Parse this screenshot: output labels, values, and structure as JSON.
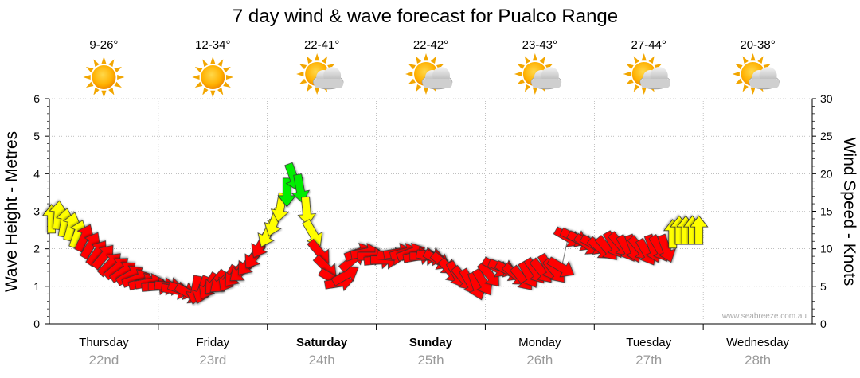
{
  "chart_data": {
    "type": "line",
    "title": "7 day wind & wave forecast for Pualco Range",
    "ylabel_left": "Wave Height - Metres",
    "ylabel_right": "Wind Speed - Knots",
    "y_left_ticks": [
      "0",
      "1",
      "2",
      "3",
      "4",
      "5",
      "6"
    ],
    "y_right_ticks": [
      "0",
      "5",
      "10",
      "15",
      "20",
      "25",
      "30"
    ],
    "ylim_left": [
      0,
      6
    ],
    "ylim_right": [
      0,
      30
    ],
    "grid": true,
    "days": [
      {
        "name": "Thursday",
        "date": "22nd",
        "temp": "9-26°",
        "icon": "sun-icon",
        "bold": false
      },
      {
        "name": "Friday",
        "date": "23rd",
        "temp": "12-34°",
        "icon": "sun-icon",
        "bold": false
      },
      {
        "name": "Saturday",
        "date": "24th",
        "temp": "22-41°",
        "icon": "partly-cloudy-icon",
        "bold": true
      },
      {
        "name": "Sunday",
        "date": "25th",
        "temp": "22-42°",
        "icon": "partly-cloudy-icon",
        "bold": true
      },
      {
        "name": "Monday",
        "date": "26th",
        "temp": "23-43°",
        "icon": "partly-cloudy-icon",
        "bold": false
      },
      {
        "name": "Tuesday",
        "date": "27th",
        "temp": "27-44°",
        "icon": "partly-cloudy-icon",
        "bold": false
      },
      {
        "name": "Wednesday",
        "date": "28th",
        "temp": "20-38°",
        "icon": "partly-cloudy-icon",
        "bold": false
      }
    ],
    "wind_series": {
      "name": "Wind Speed",
      "unit": "knots",
      "points": [
        {
          "t": 0.02,
          "v": 14.0,
          "dir": 180
        },
        {
          "t": 0.08,
          "v": 14.5,
          "dir": 185
        },
        {
          "t": 0.14,
          "v": 13.5,
          "dir": 190
        },
        {
          "t": 0.2,
          "v": 13.0,
          "dir": 195
        },
        {
          "t": 0.26,
          "v": 12.0,
          "dir": 200
        },
        {
          "t": 0.32,
          "v": 11.5,
          "dir": 205
        },
        {
          "t": 0.38,
          "v": 10.5,
          "dir": 210
        },
        {
          "t": 0.44,
          "v": 9.5,
          "dir": 215
        },
        {
          "t": 0.5,
          "v": 9.0,
          "dir": 220
        },
        {
          "t": 0.56,
          "v": 8.0,
          "dir": 225
        },
        {
          "t": 0.62,
          "v": 7.5,
          "dir": 230
        },
        {
          "t": 0.68,
          "v": 7.0,
          "dir": 235
        },
        {
          "t": 0.74,
          "v": 6.5,
          "dir": 240
        },
        {
          "t": 0.8,
          "v": 6.0,
          "dir": 250
        },
        {
          "t": 0.86,
          "v": 5.5,
          "dir": 255
        },
        {
          "t": 0.92,
          "v": 5.5,
          "dir": 260
        },
        {
          "t": 0.98,
          "v": 5.0,
          "dir": 265
        },
        {
          "t": 1.04,
          "v": 5.0,
          "dir": 270
        },
        {
          "t": 1.1,
          "v": 5.0,
          "dir": 275
        },
        {
          "t": 1.16,
          "v": 4.5,
          "dir": 280
        },
        {
          "t": 1.22,
          "v": 4.5,
          "dir": 290
        },
        {
          "t": 1.28,
          "v": 4.0,
          "dir": 300
        },
        {
          "t": 1.34,
          "v": 4.5,
          "dir": 10
        },
        {
          "t": 1.4,
          "v": 4.5,
          "dir": 20
        },
        {
          "t": 1.46,
          "v": 5.0,
          "dir": 30
        },
        {
          "t": 1.52,
          "v": 5.5,
          "dir": 40
        },
        {
          "t": 1.58,
          "v": 5.5,
          "dir": 50
        },
        {
          "t": 1.64,
          "v": 6.0,
          "dir": 30
        },
        {
          "t": 1.7,
          "v": 6.5,
          "dir": 40
        },
        {
          "t": 1.76,
          "v": 7.0,
          "dir": 50
        },
        {
          "t": 1.82,
          "v": 8.0,
          "dir": 40
        },
        {
          "t": 1.88,
          "v": 9.0,
          "dir": 35
        },
        {
          "t": 1.94,
          "v": 10.5,
          "dir": 30
        },
        {
          "t": 2.0,
          "v": 12.0,
          "dir": 25
        },
        {
          "t": 2.06,
          "v": 13.5,
          "dir": 20
        },
        {
          "t": 2.12,
          "v": 15.5,
          "dir": 10
        },
        {
          "t": 2.18,
          "v": 17.5,
          "dir": 0
        },
        {
          "t": 2.24,
          "v": 19.5,
          "dir": 340
        },
        {
          "t": 2.3,
          "v": 18.0,
          "dir": 350
        },
        {
          "t": 2.36,
          "v": 15.0,
          "dir": 355
        },
        {
          "t": 2.42,
          "v": 12.0,
          "dir": 330
        },
        {
          "t": 2.48,
          "v": 9.5,
          "dir": 320
        },
        {
          "t": 2.54,
          "v": 7.5,
          "dir": 315
        },
        {
          "t": 2.6,
          "v": 6.0,
          "dir": 300
        },
        {
          "t": 2.66,
          "v": 5.5,
          "dir": 260
        },
        {
          "t": 2.72,
          "v": 6.5,
          "dir": 240
        },
        {
          "t": 2.78,
          "v": 8.5,
          "dir": 230
        },
        {
          "t": 2.84,
          "v": 9.5,
          "dir": 250
        },
        {
          "t": 2.9,
          "v": 9.5,
          "dir": 260
        },
        {
          "t": 2.96,
          "v": 9.0,
          "dir": 270
        },
        {
          "t": 3.02,
          "v": 8.5,
          "dir": 265
        },
        {
          "t": 3.08,
          "v": 8.5,
          "dir": 270
        },
        {
          "t": 3.14,
          "v": 9.0,
          "dir": 275
        },
        {
          "t": 3.2,
          "v": 9.5,
          "dir": 260
        },
        {
          "t": 3.26,
          "v": 9.5,
          "dir": 255
        },
        {
          "t": 3.32,
          "v": 9.5,
          "dir": 250
        },
        {
          "t": 3.38,
          "v": 9.0,
          "dir": 260
        },
        {
          "t": 3.44,
          "v": 9.0,
          "dir": 270
        },
        {
          "t": 3.5,
          "v": 9.0,
          "dir": 280
        },
        {
          "t": 3.56,
          "v": 8.5,
          "dir": 300
        },
        {
          "t": 3.62,
          "v": 8.0,
          "dir": 310
        },
        {
          "t": 3.68,
          "v": 7.0,
          "dir": 320
        },
        {
          "t": 3.74,
          "v": 6.5,
          "dir": 330
        },
        {
          "t": 3.8,
          "v": 6.0,
          "dir": 320
        },
        {
          "t": 3.86,
          "v": 5.5,
          "dir": 330
        },
        {
          "t": 3.92,
          "v": 5.0,
          "dir": 340
        },
        {
          "t": 3.98,
          "v": 5.5,
          "dir": 330
        },
        {
          "t": 4.04,
          "v": 6.5,
          "dir": 320
        },
        {
          "t": 4.1,
          "v": 7.5,
          "dir": 300
        },
        {
          "t": 4.16,
          "v": 7.5,
          "dir": 290
        },
        {
          "t": 4.22,
          "v": 7.0,
          "dir": 300
        },
        {
          "t": 4.28,
          "v": 6.5,
          "dir": 310
        },
        {
          "t": 4.34,
          "v": 6.0,
          "dir": 320
        },
        {
          "t": 4.4,
          "v": 6.5,
          "dir": 330
        },
        {
          "t": 4.46,
          "v": 7.0,
          "dir": 325
        },
        {
          "t": 4.52,
          "v": 7.0,
          "dir": 320
        },
        {
          "t": 4.58,
          "v": 7.5,
          "dir": 330
        },
        {
          "t": 4.64,
          "v": 7.0,
          "dir": 320
        },
        {
          "t": 4.7,
          "v": 7.5,
          "dir": 300
        },
        {
          "t": 4.76,
          "v": 11.5,
          "dir": 300
        },
        {
          "t": 4.82,
          "v": 11.5,
          "dir": 295
        },
        {
          "t": 4.88,
          "v": 11.0,
          "dir": 300
        },
        {
          "t": 4.94,
          "v": 10.5,
          "dir": 305
        },
        {
          "t": 5.0,
          "v": 10.5,
          "dir": 300
        },
        {
          "t": 5.06,
          "v": 10.0,
          "dir": 310
        },
        {
          "t": 5.12,
          "v": 10.0,
          "dir": 320
        },
        {
          "t": 5.18,
          "v": 10.5,
          "dir": 330
        },
        {
          "t": 5.24,
          "v": 10.5,
          "dir": 320
        },
        {
          "t": 5.3,
          "v": 10.0,
          "dir": 330
        },
        {
          "t": 5.36,
          "v": 10.0,
          "dir": 340
        },
        {
          "t": 5.42,
          "v": 10.0,
          "dir": 320
        },
        {
          "t": 5.48,
          "v": 9.5,
          "dir": 330
        },
        {
          "t": 5.54,
          "v": 10.0,
          "dir": 340
        },
        {
          "t": 5.6,
          "v": 10.0,
          "dir": 330
        },
        {
          "t": 5.66,
          "v": 10.0,
          "dir": 340
        },
        {
          "t": 5.72,
          "v": 12.0,
          "dir": 180
        },
        {
          "t": 5.78,
          "v": 12.5,
          "dir": 180
        },
        {
          "t": 5.84,
          "v": 12.5,
          "dir": 180
        },
        {
          "t": 5.9,
          "v": 12.5,
          "dir": 180
        },
        {
          "t": 5.96,
          "v": 12.5,
          "dir": 180
        }
      ]
    },
    "wind_colors": {
      "light": "#ff0000",
      "moderate": "#ffff00",
      "strong": "#00ee00"
    },
    "credit": "www.seabreeze.com.au"
  }
}
